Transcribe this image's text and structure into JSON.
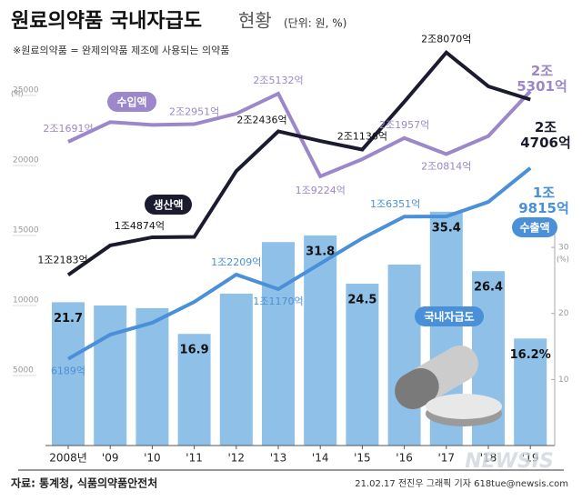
{
  "chart_data": {
    "type": "combo",
    "title": "원료의약품 국내자급도",
    "title_suffix": "현황",
    "unit_note": "(단위: 원, %)",
    "subtitle": "※원료의약품 = 완제의약품 제조에 사용되는 의약품",
    "source": "자료: 통계청, 식품의약품안전처",
    "credit": "21.02.17 전진우 그래픽 기자 618tue@newsis.com",
    "watermark": "NEWSIS",
    "y_unit": "(억)",
    "y2_unit": "(%)",
    "categories": [
      "2008년",
      "'09",
      "'10",
      "'11",
      "'12",
      "'13",
      "'14",
      "'15",
      "'16",
      "'17",
      "'18",
      "'19"
    ],
    "ylim": [
      0,
      25000
    ],
    "yticks": [
      5000,
      10000,
      15000,
      20000,
      25000
    ],
    "y2lim": [
      0,
      53
    ],
    "y2ticks": [
      10,
      20,
      30
    ],
    "series": [
      {
        "name": "국내자급도",
        "type": "bar",
        "axis": "y2",
        "color": "#8fc0e8",
        "values": [
          21.7,
          21.2,
          20.8,
          16.9,
          23.0,
          30.8,
          31.8,
          24.5,
          27.4,
          35.4,
          26.4,
          16.2
        ],
        "value_labels": [
          "21.7",
          null,
          null,
          "16.9",
          null,
          null,
          "31.8",
          "24.5",
          null,
          "35.4",
          "26.4",
          "16.2%"
        ]
      },
      {
        "name": "수입액",
        "type": "line",
        "color": "#9b87c9",
        "values": [
          21691,
          23100,
          22900,
          22951,
          23700,
          25132,
          19224,
          20450,
          21957,
          20814,
          22100,
          25301
        ],
        "value_labels": [
          "2조1691억",
          null,
          null,
          "2조2951억",
          null,
          "2조5132억",
          "1조9224억",
          null,
          "2조1957억",
          "2조0814억",
          null,
          "2조5301억"
        ]
      },
      {
        "name": "생산액",
        "type": "line",
        "color": "#1b1b2f",
        "values": [
          12183,
          14290,
          14874,
          14900,
          19600,
          22436,
          21750,
          21136,
          24550,
          28070,
          25650,
          24706
        ],
        "value_labels": [
          "1조2183억",
          null,
          "1조4874억",
          null,
          null,
          "2조2436억",
          null,
          "2조1136억",
          null,
          "2조8070억",
          null,
          "2조4706억"
        ]
      },
      {
        "name": "수출액",
        "type": "line",
        "color": "#4a90d9",
        "values": [
          6189,
          7920,
          8770,
          10260,
          12209,
          11170,
          12990,
          14800,
          16351,
          16360,
          17400,
          19815
        ],
        "value_labels": [
          "6189억",
          null,
          null,
          null,
          "1조2209억",
          "1조1170억",
          null,
          null,
          "1조6351억",
          null,
          null,
          "1조9815억"
        ]
      }
    ]
  }
}
